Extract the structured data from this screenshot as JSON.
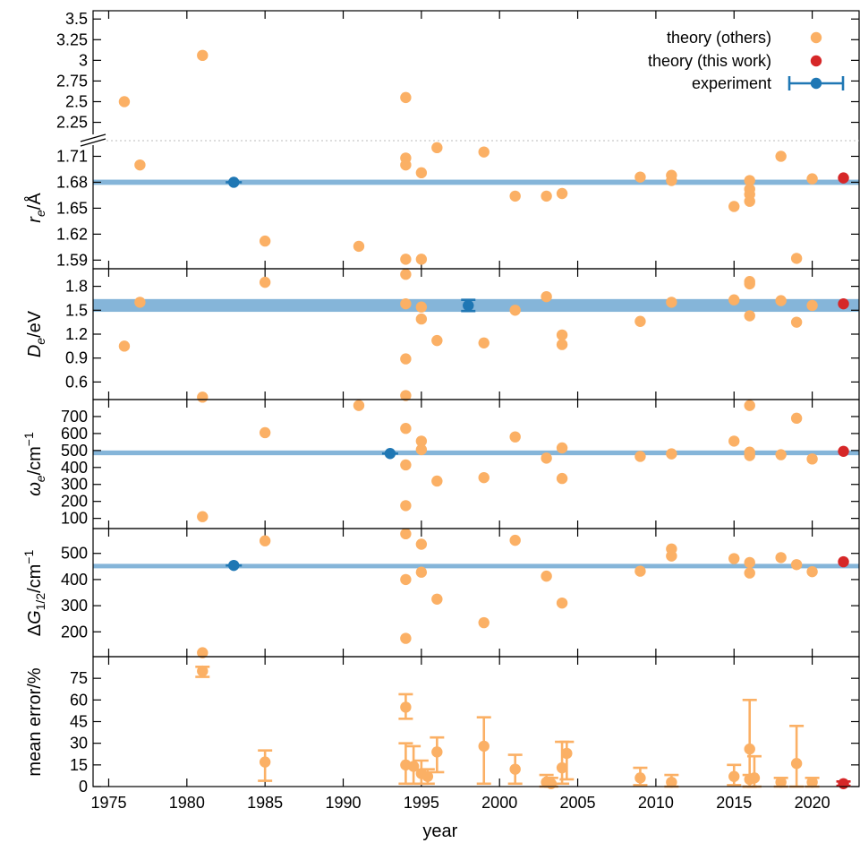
{
  "chart_data": {
    "type": "scatter",
    "x_axis": {
      "label": "year",
      "ticks": [
        "1975",
        "1980",
        "1985",
        "1990",
        "1995",
        "2000",
        "2005",
        "2010",
        "2015",
        "2020"
      ],
      "range": [
        1974,
        2023
      ]
    },
    "legend": {
      "placement": "top-right",
      "entries": [
        {
          "label": "theory (others)",
          "color": "#fbb065",
          "marker": "circle"
        },
        {
          "label": "theory (this work)",
          "color": "#d62728",
          "marker": "circle"
        },
        {
          "label": "experiment",
          "color": "#1f77b4",
          "marker": "errorbar-circle"
        }
      ]
    },
    "colors": {
      "others": "#fbb065",
      "this_work": "#d62728",
      "experiment": "#1f77b4",
      "experiment_band": "#85b5d9"
    },
    "panels": [
      {
        "id": "re",
        "ylabel": "r_e/Å",
        "broken_axis": true,
        "upper_ticks": [
          "2.25",
          "2.5",
          "2.75",
          "3",
          "3.25",
          "3.5"
        ],
        "lower_ticks": [
          "1.59",
          "1.62",
          "1.65",
          "1.68",
          "1.71"
        ],
        "lower_range": [
          1.58,
          1.725
        ],
        "upper_range": [
          2.05,
          3.6
        ],
        "band": [
          1.677,
          1.683
        ],
        "others": [
          [
            1976,
            2.5
          ],
          [
            1977,
            1.7
          ],
          [
            1981,
            3.06
          ],
          [
            1985,
            1.612
          ],
          [
            1991,
            1.606
          ],
          [
            1994,
            2.55
          ],
          [
            1994,
            1.708
          ],
          [
            1994,
            1.7
          ],
          [
            1994,
            1.591
          ],
          [
            1995,
            1.691
          ],
          [
            1995,
            1.591
          ],
          [
            1996,
            1.72
          ],
          [
            1999,
            1.715
          ],
          [
            2001,
            1.664
          ],
          [
            2003,
            1.664
          ],
          [
            2004,
            1.667
          ],
          [
            2009,
            1.686
          ],
          [
            2011,
            1.688
          ],
          [
            2011,
            1.682
          ],
          [
            2015,
            1.652
          ],
          [
            2016,
            1.682
          ],
          [
            2016,
            1.672
          ],
          [
            2016,
            1.666
          ],
          [
            2016,
            1.658
          ],
          [
            2018,
            1.71
          ],
          [
            2019,
            1.592
          ],
          [
            2020,
            1.684
          ]
        ],
        "this_work": [
          [
            2022,
            1.685
          ]
        ],
        "experiment": [
          [
            1983,
            1.68,
            0
          ]
        ]
      },
      {
        "id": "De",
        "ylabel": "D_e/eV",
        "ticks": [
          "0.6",
          "0.9",
          "1.2",
          "1.5",
          "1.8"
        ],
        "range": [
          0.38,
          2.02
        ],
        "band": [
          1.48,
          1.64
        ],
        "others": [
          [
            1976,
            1.05
          ],
          [
            1977,
            1.6
          ],
          [
            1981,
            0.41
          ],
          [
            1985,
            1.85
          ],
          [
            1994,
            1.95
          ],
          [
            1994,
            1.58
          ],
          [
            1994,
            0.89
          ],
          [
            1994,
            0.43
          ],
          [
            1995,
            1.54
          ],
          [
            1995,
            1.39
          ],
          [
            1996,
            1.12
          ],
          [
            1999,
            1.09
          ],
          [
            2001,
            1.5
          ],
          [
            2003,
            1.67
          ],
          [
            2004,
            1.19
          ],
          [
            2004,
            1.07
          ],
          [
            2009,
            1.36
          ],
          [
            2011,
            1.6
          ],
          [
            2015,
            1.63
          ],
          [
            2016,
            1.86
          ],
          [
            2016,
            1.83
          ],
          [
            2016,
            1.43
          ],
          [
            2018,
            1.62
          ],
          [
            2019,
            1.35
          ],
          [
            2020,
            1.56
          ]
        ],
        "this_work": [
          [
            2022,
            1.58
          ]
        ],
        "experiment": [
          [
            1998,
            1.56,
            0.07
          ]
        ]
      },
      {
        "id": "we",
        "ylabel": "ω_e/cm⁻¹",
        "ticks": [
          "100",
          "200",
          "300",
          "400",
          "500",
          "600",
          "700"
        ],
        "range": [
          40,
          800
        ],
        "band": [
          472,
          500
        ],
        "others": [
          [
            1981,
            110
          ],
          [
            1985,
            605
          ],
          [
            1991,
            765
          ],
          [
            1994,
            630
          ],
          [
            1994,
            415
          ],
          [
            1994,
            175
          ],
          [
            1995,
            555
          ],
          [
            1995,
            505
          ],
          [
            1996,
            320
          ],
          [
            1999,
            340
          ],
          [
            2001,
            580
          ],
          [
            2003,
            455
          ],
          [
            2004,
            515
          ],
          [
            2004,
            335
          ],
          [
            2009,
            465
          ],
          [
            2011,
            480
          ],
          [
            2015,
            555
          ],
          [
            2016,
            765
          ],
          [
            2016,
            490
          ],
          [
            2016,
            470
          ],
          [
            2018,
            475
          ],
          [
            2019,
            690
          ],
          [
            2020,
            450
          ]
        ],
        "this_work": [
          [
            2022,
            495
          ]
        ],
        "experiment": [
          [
            1993,
            482,
            0
          ]
        ]
      },
      {
        "id": "dG",
        "ylabel": "ΔG_1/2/cm⁻¹",
        "ticks": [
          "200",
          "300",
          "400",
          "500"
        ],
        "range": [
          105,
          595
        ],
        "band": [
          448,
          460
        ],
        "others": [
          [
            1981,
            120
          ],
          [
            1985,
            548
          ],
          [
            1994,
            575
          ],
          [
            1994,
            400
          ],
          [
            1994,
            175
          ],
          [
            1995,
            535
          ],
          [
            1995,
            428
          ],
          [
            1996,
            325
          ],
          [
            1999,
            235
          ],
          [
            2001,
            550
          ],
          [
            2003,
            413
          ],
          [
            2004,
            310
          ],
          [
            2009,
            432
          ],
          [
            2011,
            517
          ],
          [
            2011,
            490
          ],
          [
            2015,
            480
          ],
          [
            2016,
            465
          ],
          [
            2016,
            425
          ],
          [
            2018,
            484
          ],
          [
            2019,
            457
          ],
          [
            2020,
            430
          ]
        ],
        "this_work": [
          [
            2022,
            468
          ]
        ],
        "experiment": [
          [
            1983,
            454,
            0
          ]
        ]
      },
      {
        "id": "err",
        "ylabel": "mean error/%",
        "ticks": [
          "0",
          "15",
          "30",
          "45",
          "60",
          "75"
        ],
        "range": [
          0,
          90
        ],
        "others": [
          [
            1981,
            80,
            76,
            83
          ],
          [
            1985,
            17,
            4,
            25
          ],
          [
            1994,
            15,
            2,
            30
          ],
          [
            1994,
            55,
            47,
            64
          ],
          [
            1994.5,
            14,
            2,
            28
          ],
          [
            1995,
            9,
            2,
            18
          ],
          [
            1995.4,
            7,
            2,
            12
          ],
          [
            1996,
            24,
            10,
            34
          ],
          [
            1999,
            28,
            2,
            48
          ],
          [
            2001,
            12,
            2,
            22
          ],
          [
            2003,
            3,
            0,
            8
          ],
          [
            2003.3,
            2,
            0,
            6
          ],
          [
            2004,
            13,
            2,
            31
          ],
          [
            2004.3,
            23,
            5,
            31
          ],
          [
            2009,
            6,
            1,
            13
          ],
          [
            2011,
            3,
            0,
            8
          ],
          [
            2015,
            7,
            1,
            15
          ],
          [
            2016,
            26,
            0,
            60
          ],
          [
            2016,
            5,
            0,
            8
          ],
          [
            2016.3,
            6,
            0,
            21
          ],
          [
            2018,
            3,
            0,
            6
          ],
          [
            2019,
            16,
            0,
            42
          ],
          [
            2020,
            3,
            0,
            6
          ]
        ],
        "this_work": [
          [
            2022,
            2,
            0.5,
            3.5
          ]
        ]
      }
    ]
  }
}
